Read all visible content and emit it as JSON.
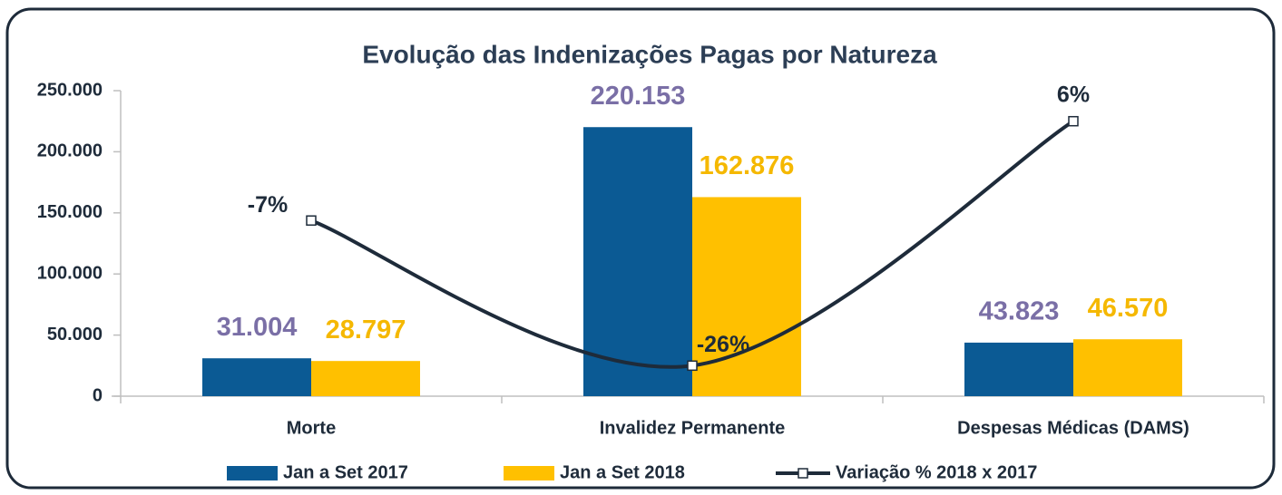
{
  "chart_data": {
    "type": "bar",
    "title": "Evolução das Indenizações Pagas por Natureza",
    "categories": [
      "Morte",
      "Invalidez Permanente",
      "Despesas Médicas (DAMS)"
    ],
    "series": [
      {
        "name": "Jan a Set 2017",
        "type": "bar",
        "color": "#0b5a94",
        "label_color": "#7a6fa6",
        "values": [
          31004,
          220153,
          43823
        ],
        "value_labels": [
          "31.004",
          "220.153",
          "43.823"
        ]
      },
      {
        "name": "Jan a Set 2018",
        "type": "bar",
        "color": "#ffc000",
        "label_color": "#f5b800",
        "values": [
          28797,
          162876,
          46570
        ],
        "value_labels": [
          "28.797",
          "162.876",
          "46.570"
        ]
      },
      {
        "name": "Variação % 2018 x 2017",
        "type": "line",
        "axis": "y2",
        "color": "#1e2b3a",
        "label_color": "#1e2b3a",
        "values": [
          -7,
          -26,
          6
        ],
        "value_labels": [
          "-7%",
          "-26%",
          "6%"
        ]
      }
    ],
    "ylim": [
      0,
      250000
    ],
    "yticks": [
      0,
      {
        "value": 50000,
        "label": "50.000"
      },
      {
        "value": 100000,
        "label": "100.000"
      },
      {
        "value": 150000,
        "label": "150.000"
      },
      {
        "value": 200000,
        "label": "200.000"
      },
      {
        "value": 250000,
        "label": "250.000"
      }
    ],
    "y2lim": [
      -30,
      10
    ],
    "legend": "bottom"
  }
}
